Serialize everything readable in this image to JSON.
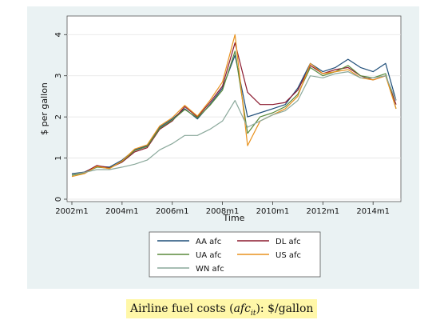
{
  "caption": {
    "before": "Airline fuel costs (",
    "var_base": "afc",
    "var_sub": "it",
    "after": "): $/gallon"
  },
  "chart_data": {
    "type": "line",
    "title": "",
    "xlabel": "Time",
    "ylabel": "$ per gallon",
    "x_ticks": [
      "2002m1",
      "2004m1",
      "2006m1",
      "2008m1",
      "2010m1",
      "2012m1",
      "2014m1"
    ],
    "y_ticks": [
      0,
      1,
      2,
      3,
      4
    ],
    "xlim": [
      "2002m1",
      "2014m12"
    ],
    "ylim": [
      0,
      4.2
    ],
    "grid": true,
    "legend_position": "bottom",
    "x": [
      "2002m1",
      "2002m7",
      "2003m1",
      "2003m7",
      "2004m1",
      "2004m7",
      "2005m1",
      "2005m7",
      "2006m1",
      "2006m7",
      "2007m1",
      "2007m7",
      "2008m1",
      "2008m7",
      "2009m1",
      "2009m7",
      "2010m1",
      "2010m7",
      "2011m1",
      "2011m7",
      "2012m1",
      "2012m7",
      "2013m1",
      "2013m7",
      "2014m1",
      "2014m7",
      "2014m12"
    ],
    "series": [
      {
        "name": "AA afc",
        "color": "#1f4e79",
        "values": [
          0.62,
          0.66,
          0.8,
          0.78,
          0.95,
          1.2,
          1.3,
          1.75,
          1.95,
          2.2,
          1.95,
          2.3,
          2.7,
          3.5,
          2.0,
          2.1,
          2.2,
          2.3,
          2.7,
          3.3,
          3.1,
          3.2,
          3.4,
          3.2,
          3.1,
          3.3,
          2.4
        ]
      },
      {
        "name": "DL afc",
        "color": "#8b1a2f",
        "values": [
          0.6,
          0.65,
          0.82,
          0.76,
          0.9,
          1.15,
          1.25,
          1.7,
          1.9,
          2.25,
          2.0,
          2.35,
          2.75,
          3.8,
          2.6,
          2.3,
          2.3,
          2.35,
          2.65,
          3.25,
          3.05,
          3.15,
          3.2,
          3.0,
          2.9,
          3.0,
          2.3
        ]
      },
      {
        "name": "UA afc",
        "color": "#5a8a3c",
        "values": [
          0.58,
          0.64,
          0.78,
          0.75,
          0.92,
          1.18,
          1.28,
          1.72,
          1.92,
          2.18,
          1.98,
          2.28,
          2.65,
          3.6,
          1.6,
          2.0,
          2.1,
          2.25,
          2.55,
          3.2,
          3.0,
          3.1,
          3.25,
          3.0,
          2.95,
          3.05,
          2.2
        ]
      },
      {
        "name": "US afc",
        "color": "#e8921e",
        "values": [
          0.55,
          0.62,
          0.8,
          0.74,
          0.93,
          1.22,
          1.32,
          1.78,
          1.98,
          2.28,
          2.02,
          2.4,
          2.85,
          4.0,
          1.3,
          1.9,
          2.05,
          2.2,
          2.5,
          3.3,
          3.05,
          3.1,
          3.15,
          2.95,
          2.9,
          3.0,
          2.2
        ]
      },
      {
        "name": "WN afc",
        "color": "#8aa89b",
        "values": [
          0.6,
          0.65,
          0.72,
          0.72,
          0.78,
          0.85,
          0.95,
          1.2,
          1.35,
          1.55,
          1.55,
          1.7,
          1.9,
          2.4,
          1.75,
          1.9,
          2.05,
          2.15,
          2.4,
          3.0,
          2.95,
          3.05,
          3.1,
          2.95,
          2.95,
          3.0,
          2.4
        ]
      }
    ]
  }
}
